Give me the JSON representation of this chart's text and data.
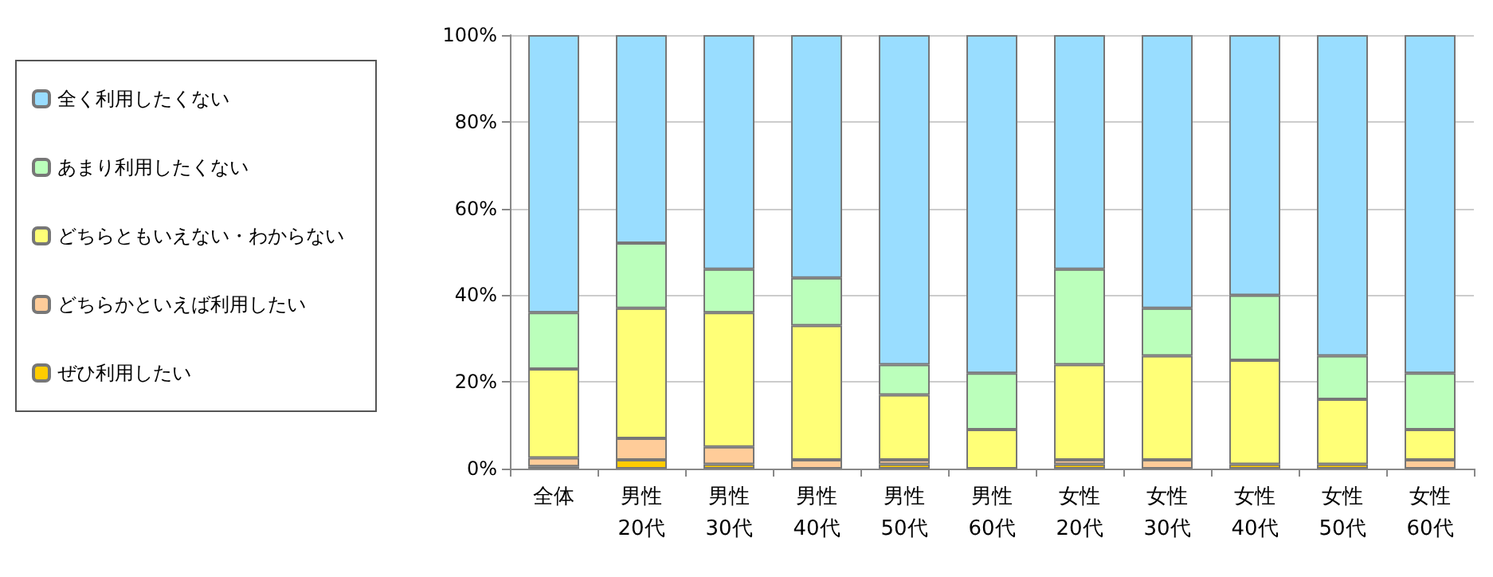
{
  "chart_data": {
    "type": "bar",
    "stacked": true,
    "categories": [
      "全体",
      "男性 20代",
      "男性 30代",
      "男性 40代",
      "男性 50代",
      "男性 60代",
      "女性 20代",
      "女性 30代",
      "女性 40代",
      "女性 50代",
      "女性 60代"
    ],
    "series": [
      {
        "name": "ぜひ利用したい",
        "color": "#ffcc00",
        "values": [
          0.5,
          2,
          1,
          0,
          1,
          0,
          1,
          0,
          1,
          1,
          0
        ]
      },
      {
        "name": "どちらかといえば利用したい",
        "color": "#ffcc99",
        "values": [
          2,
          5,
          4,
          2,
          1,
          0,
          1,
          2,
          0,
          0,
          2
        ]
      },
      {
        "name": "どちらともいえない・わからない",
        "color": "#ffff77",
        "values": [
          20.5,
          30,
          31,
          31,
          15,
          9,
          22,
          24,
          24,
          15,
          7
        ]
      },
      {
        "name": "あまり利用したくない",
        "color": "#bbffbb",
        "values": [
          13,
          15,
          10,
          11,
          7,
          13,
          22,
          11,
          15,
          10,
          13
        ]
      },
      {
        "name": "全く利用したくない",
        "color": "#99ddff",
        "values": [
          64,
          48,
          54,
          56,
          76,
          78,
          54,
          63,
          60,
          74,
          78
        ]
      }
    ],
    "ylim": [
      0,
      100
    ],
    "yticks": [
      {
        "value": 0,
        "label": "0%"
      },
      {
        "value": 20,
        "label": "20%"
      },
      {
        "value": 40,
        "label": "40%"
      },
      {
        "value": 60,
        "label": "60%"
      },
      {
        "value": 80,
        "label": "80%"
      },
      {
        "value": 100,
        "label": "100%"
      }
    ],
    "grid": "y",
    "legend": "left"
  }
}
